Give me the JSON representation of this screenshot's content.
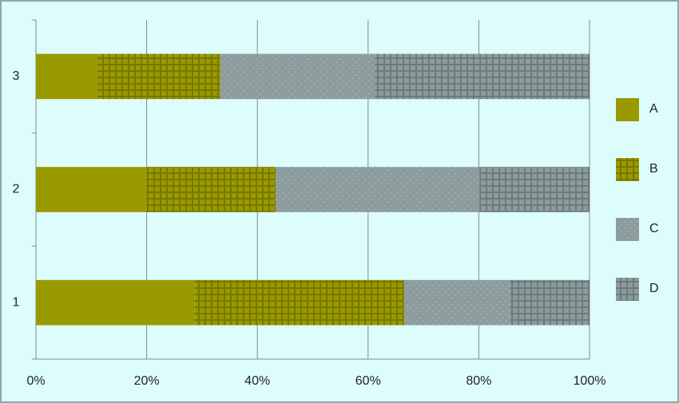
{
  "chart_data": {
    "type": "stacked-bar-horizontal",
    "categories": [
      "1",
      "2",
      "3"
    ],
    "series": [
      {
        "name": "A",
        "color": "#999900",
        "pattern": "solid",
        "values": [
          28.6,
          19.9,
          11.1
        ]
      },
      {
        "name": "B",
        "color": "#999900",
        "pattern": "grid",
        "values": [
          37.9,
          23.4,
          22.2
        ]
      },
      {
        "name": "C",
        "color": "#8c9c9c",
        "pattern": "dots",
        "values": [
          19.1,
          36.8,
          27.9
        ]
      },
      {
        "name": "D",
        "color": "#8c9c9c",
        "pattern": "grid",
        "values": [
          14.4,
          19.9,
          38.8
        ]
      }
    ],
    "xlim": [
      0,
      100
    ],
    "xticks": [
      {
        "value": 0,
        "label": "0%"
      },
      {
        "value": 20,
        "label": "20%"
      },
      {
        "value": 40,
        "label": "40%"
      },
      {
        "value": 60,
        "label": "60%"
      },
      {
        "value": 80,
        "label": "80%"
      },
      {
        "value": 100,
        "label": "100%"
      }
    ],
    "grid": true,
    "legend": "right"
  }
}
